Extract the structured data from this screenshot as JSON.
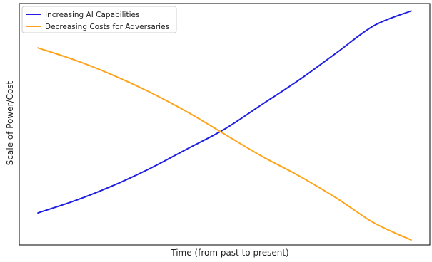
{
  "chart_data": {
    "type": "line",
    "title": "",
    "xlabel": "Time (from past to present)",
    "ylabel": "Scale of Power/Cost",
    "xlim": [
      -0.05,
      1.05
    ],
    "ylim": [
      0.05,
      1.03
    ],
    "grid": false,
    "legend": "top-left",
    "x": [
      0,
      0.1,
      0.2,
      0.3,
      0.4,
      0.5,
      0.6,
      0.7,
      0.8,
      0.9,
      1
    ],
    "series": [
      {
        "name": "Increasing AI Capabilities",
        "color": "#1f1fe0",
        "values": [
          0.18,
          0.23,
          0.29,
          0.36,
          0.44,
          0.52,
          0.62,
          0.72,
          0.83,
          0.94,
          1.0
        ]
      },
      {
        "name": "Decreasing Costs for Adversaries",
        "color": "#ffa31a",
        "values": [
          0.85,
          0.8,
          0.74,
          0.67,
          0.59,
          0.5,
          0.41,
          0.33,
          0.24,
          0.14,
          0.07
        ]
      }
    ]
  }
}
